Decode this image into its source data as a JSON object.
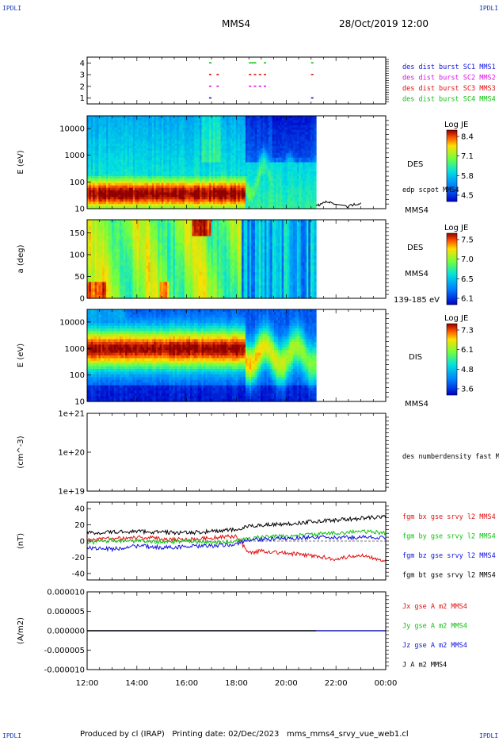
{
  "corners": {
    "top_left": "IPDLI",
    "top_right": "IPDLI",
    "bottom_left": "IPDLI",
    "bottom_right": "IPDLI"
  },
  "header": {
    "spacecraft": "MMS4",
    "datetime": "28/Oct/2019 12:00"
  },
  "footer": {
    "text": "Produced by cl (IRAP)   Printing date: 02/Dec/2023   mms_mms4_srvy_vue_web1.cl"
  },
  "colors": {
    "red": "#e01010",
    "green": "#10c010",
    "blue": "#1010e0",
    "magenta": "#e010e0",
    "black": "#000000"
  },
  "chart_data": [
    {
      "type": "scatter",
      "ylim": [
        0.5,
        4.5
      ],
      "yticks": [
        "1",
        "2",
        "3",
        "4"
      ],
      "legend": [
        {
          "label": "des dist burst SC1 MMS1",
          "color": "#1010e0"
        },
        {
          "label": "des dist burst SC2 MMS2",
          "color": "#e010e0"
        },
        {
          "label": "des dist burst SC3 MMS3",
          "color": "#e01010"
        },
        {
          "label": "des dist burst SC4 MMS4",
          "color": "#10c010"
        }
      ],
      "series": [
        {
          "name": "des dist burst SC1 MMS1",
          "y": 1,
          "x": [
            16.9,
            21.0
          ]
        },
        {
          "name": "des dist burst SC2 MMS2",
          "y": 2,
          "x": [
            16.9,
            17.2,
            18.5,
            18.7,
            18.9,
            19.1
          ]
        },
        {
          "name": "des dist burst SC3 MMS3",
          "y": 3,
          "x": [
            16.9,
            17.2,
            18.5,
            18.7,
            18.9,
            19.1,
            21.0
          ]
        },
        {
          "name": "des dist burst SC4 MMS4",
          "y": 4,
          "x": [
            16.9,
            18.5,
            18.6,
            18.7,
            19.1,
            21.0
          ]
        }
      ]
    },
    {
      "type": "heatmap",
      "ylabel": "E (eV)",
      "yscale": "log",
      "ylim": [
        10,
        30000
      ],
      "yticks": [
        "10",
        "100",
        "1000",
        "10000"
      ],
      "right_label": "DES",
      "right_sublabel": "MMS4",
      "overlay_label": "edp scpot MMS4",
      "colorbar": {
        "title": "Log JE",
        "ticks": [
          "8.4",
          "7.1",
          "5.8",
          "4.5"
        ]
      },
      "data_end_x": 21.2,
      "overlay": {
        "name": "edp scpot MMS4",
        "x": [
          21.2,
          21.6,
          22.4,
          23.0
        ],
        "y": [
          12,
          18,
          12,
          16
        ]
      }
    },
    {
      "type": "heatmap",
      "ylabel": "a (deg)",
      "ylim": [
        0,
        180
      ],
      "yticks": [
        "0",
        "50",
        "100",
        "150"
      ],
      "right_label": "DES",
      "right_sublabel": "MMS4",
      "energy_label": "139-185 eV",
      "colorbar": {
        "title": "Log JE",
        "ticks": [
          "7.5",
          "7.0",
          "6.5",
          "6.1"
        ]
      },
      "data_end_x": 21.2
    },
    {
      "type": "heatmap",
      "ylabel": "E (eV)",
      "yscale": "log",
      "ylim": [
        10,
        30000
      ],
      "yticks": [
        "10",
        "100",
        "1000",
        "10000"
      ],
      "right_label": "DIS",
      "right_sublabel": "MMS4",
      "colorbar": {
        "title": "Log JE",
        "ticks": [
          "7.3",
          "6.1",
          "4.8",
          "3.6"
        ]
      },
      "data_end_x": 21.2
    },
    {
      "type": "line",
      "ylabel": "(cm^-3)",
      "yscale": "log",
      "yticks": [
        "1e+19",
        "1e+20",
        "1e+21"
      ],
      "series": [
        {
          "name": "des numberdensity fast M",
          "values": []
        }
      ]
    },
    {
      "type": "line",
      "ylabel": "(nT)",
      "ylim": [
        -48,
        48
      ],
      "yticks": [
        "-40",
        "-20",
        "0",
        "20",
        "40"
      ],
      "series": [
        {
          "name": "fgm bx gse srvy l2 MMS4",
          "color": "#e01010",
          "x": [
            12,
            13,
            14,
            15,
            16,
            17,
            18,
            18.5,
            19,
            20,
            21,
            22,
            23,
            24
          ],
          "y": [
            2,
            3,
            5,
            3,
            2,
            4,
            6,
            -15,
            -12,
            -15,
            -18,
            -22,
            -17,
            -24
          ]
        },
        {
          "name": "fgm by gse srvy l2 MMS4",
          "color": "#10c010",
          "x": [
            12,
            13,
            14,
            15,
            16,
            17,
            18,
            18.5,
            19,
            20,
            21,
            22,
            23,
            24
          ],
          "y": [
            -2,
            1,
            0,
            -1,
            0,
            -2,
            0,
            3,
            5,
            6,
            8,
            10,
            12,
            10
          ]
        },
        {
          "name": "fgm bz gse srvy l2 MMS4",
          "color": "#1010e0",
          "x": [
            12,
            13,
            14,
            15,
            16,
            17,
            18,
            18.5,
            19,
            20,
            21,
            22,
            23,
            24
          ],
          "y": [
            -8,
            -10,
            -6,
            -8,
            -7,
            -6,
            -4,
            2,
            2,
            3,
            5,
            4,
            5,
            4
          ]
        },
        {
          "name": "fgm bt gse srvy l2 MMS4",
          "color": "#000000",
          "x": [
            12,
            13,
            14,
            15,
            16,
            17,
            18,
            18.5,
            19,
            20,
            21,
            22,
            23,
            24
          ],
          "y": [
            10,
            11,
            12,
            11,
            10,
            12,
            14,
            18,
            20,
            21,
            24,
            26,
            28,
            30
          ]
        }
      ]
    },
    {
      "type": "line",
      "ylabel": "(A/m2)",
      "ylim": [
        -1e-05,
        1e-05
      ],
      "yticks": [
        "-0.000010",
        "-0.000005",
        "0.000000",
        "0.000005",
        "0.000010"
      ],
      "series": [
        {
          "name": "Jx gse A m2 MMS4",
          "color": "#e01010",
          "x": [
            12,
            24
          ],
          "y": [
            0,
            0
          ]
        },
        {
          "name": "Jy gse A m2 MMS4",
          "color": "#10c010",
          "x": [
            12,
            24
          ],
          "y": [
            0,
            0
          ]
        },
        {
          "name": "Jz gse A m2 MMS4",
          "color": "#1010e0",
          "x": [
            12,
            24
          ],
          "y": [
            0,
            0
          ]
        },
        {
          "name": "J A m2 MMS4",
          "color": "#000000",
          "x": [
            12,
            21.2
          ],
          "y": [
            0,
            0
          ]
        }
      ]
    }
  ],
  "x_axis": {
    "ticks": [
      "12:00",
      "14:00",
      "16:00",
      "18:00",
      "20:00",
      "22:00",
      "00:00"
    ]
  }
}
